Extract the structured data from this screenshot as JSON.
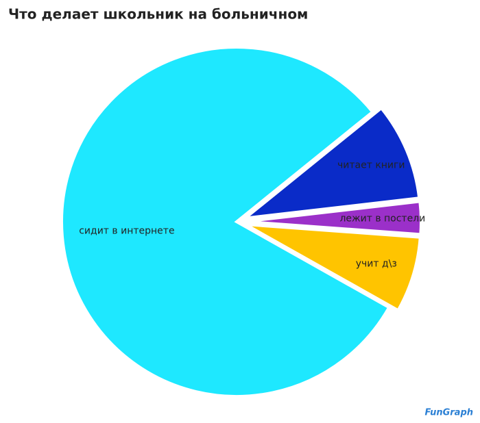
{
  "chart_data": {
    "type": "pie",
    "title": "Что делает школьник на больничном",
    "categories": [
      "читает книги",
      "лежит в постели",
      "учит д\\з",
      "сидит в интернете"
    ],
    "values": [
      9,
      3,
      7,
      81
    ],
    "colors": [
      "#0a2bc8",
      "#9b30c9",
      "#ffc400",
      "#1ee8ff"
    ],
    "exploded": [
      true,
      true,
      true,
      false
    ],
    "watermark": "FunGraph"
  }
}
